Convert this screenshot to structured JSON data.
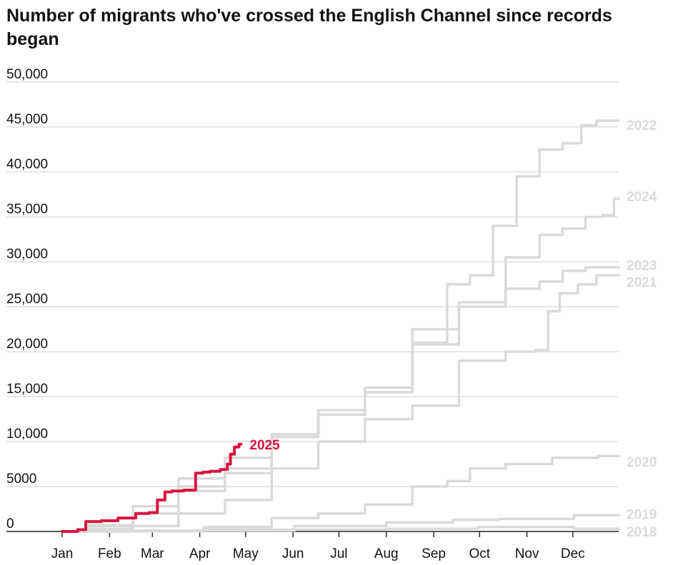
{
  "title": "Number of migrants who've crossed the English Channel since records began",
  "chart_data": {
    "type": "line",
    "title": "Number of migrants who've crossed the English Channel since records began",
    "xlabel": "",
    "ylabel": "",
    "x_unit": "day of year",
    "xlim": [
      1,
      365
    ],
    "ylim": [
      0,
      50000
    ],
    "y_ticks": [
      0,
      5000,
      10000,
      15000,
      20000,
      25000,
      30000,
      35000,
      40000,
      45000,
      50000
    ],
    "y_tick_labels": [
      "0",
      "5000",
      "10,000",
      "15,000",
      "20,000",
      "25,000",
      "30,000",
      "35,000",
      "40,000",
      "45,000",
      "50,000"
    ],
    "x_ticks": [
      1,
      32,
      60,
      91,
      121,
      152,
      182,
      213,
      244,
      274,
      305,
      335
    ],
    "x_tick_labels": [
      "Jan",
      "Feb",
      "Mar",
      "Apr",
      "May",
      "Jun",
      "Jul",
      "Aug",
      "Sep",
      "Oct",
      "Nov",
      "Dec"
    ],
    "grid": true,
    "legend": "direct labels at line ends",
    "colors": {
      "highlight": "#d6163f",
      "other": "#dadada",
      "grid": "#cfcfcf",
      "axis": "#222222"
    },
    "series": [
      {
        "name": "2018",
        "highlight": false,
        "x": [
          1,
          60,
          120,
          180,
          240,
          300,
          365
        ],
        "y": [
          0,
          20,
          100,
          200,
          300,
          500,
          300
        ]
      },
      {
        "name": "2019",
        "highlight": false,
        "x": [
          1,
          60,
          120,
          180,
          240,
          270,
          300,
          365
        ],
        "y": [
          0,
          100,
          200,
          600,
          1000,
          1300,
          1400,
          1800
        ]
      },
      {
        "name": "2020",
        "highlight": false,
        "x": [
          1,
          60,
          121,
          152,
          182,
          213,
          244,
          260,
          274,
          305,
          335,
          365
        ],
        "y": [
          0,
          100,
          500,
          1500,
          2000,
          3000,
          5000,
          5600,
          7000,
          7500,
          8200,
          8400
        ]
      },
      {
        "name": "2021",
        "highlight": false,
        "x": [
          1,
          32,
          60,
          91,
          121,
          152,
          182,
          213,
          244,
          274,
          305,
          315,
          322,
          330,
          345,
          355,
          365
        ],
        "y": [
          0,
          300,
          600,
          2000,
          3500,
          7000,
          10000,
          12500,
          14000,
          19000,
          20000,
          20200,
          24500,
          26500,
          27500,
          28500,
          28500
        ]
      },
      {
        "name": "2022",
        "highlight": false,
        "x": [
          1,
          32,
          60,
          91,
          121,
          152,
          182,
          213,
          244,
          260,
          274,
          290,
          305,
          320,
          335,
          345,
          355,
          365
        ],
        "y": [
          0,
          700,
          2000,
          4500,
          7000,
          10800,
          13000,
          16000,
          21000,
          27500,
          28500,
          34000,
          39500,
          42500,
          43200,
          45200,
          45700,
          45700
        ]
      },
      {
        "name": "2023",
        "highlight": false,
        "x": [
          1,
          32,
          60,
          91,
          121,
          152,
          182,
          213,
          244,
          274,
          305,
          320,
          335,
          350,
          365
        ],
        "y": [
          0,
          700,
          2000,
          5000,
          6500,
          10500,
          13000,
          15500,
          22500,
          25500,
          27000,
          27800,
          29000,
          29400,
          29400
        ]
      },
      {
        "name": "2024",
        "highlight": false,
        "x": [
          1,
          32,
          60,
          91,
          121,
          152,
          182,
          213,
          244,
          274,
          305,
          320,
          335,
          350,
          358,
          365
        ],
        "y": [
          0,
          600,
          2800,
          5900,
          8200,
          10800,
          13500,
          15500,
          20800,
          25000,
          30500,
          33000,
          33700,
          35000,
          35200,
          37000
        ]
      },
      {
        "name": "2025",
        "highlight": true,
        "x": [
          1,
          10,
          12,
          20,
          32,
          42,
          55,
          60,
          66,
          70,
          75,
          85,
          91,
          95,
          100,
          108,
          110,
          112,
          115,
          118
        ],
        "y": [
          0,
          0,
          200,
          1100,
          1200,
          1500,
          2000,
          2100,
          3500,
          4400,
          4500,
          4600,
          6500,
          6600,
          6700,
          6900,
          7500,
          8600,
          9400,
          9700
        ]
      }
    ]
  }
}
